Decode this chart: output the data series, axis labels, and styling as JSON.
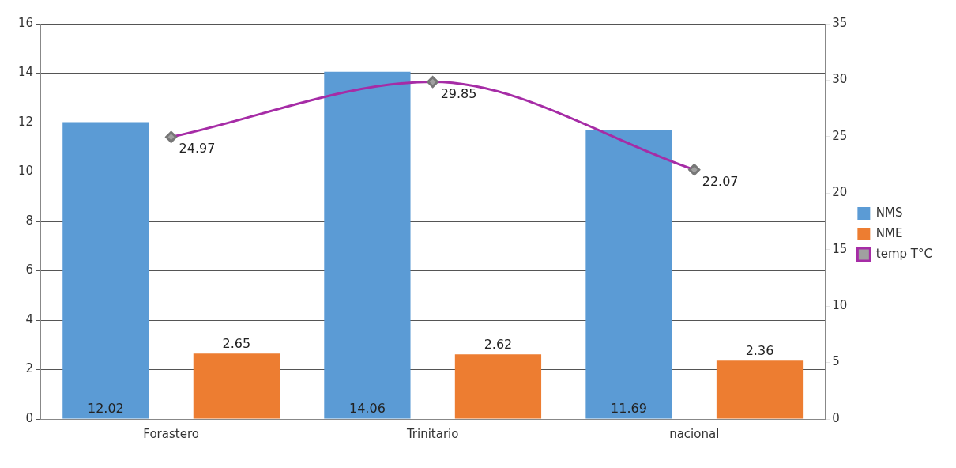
{
  "chart_data": {
    "type": "bar",
    "categories": [
      "Forastero",
      "Trinitario",
      "nacional"
    ],
    "series": [
      {
        "name": "NMS",
        "color": "#5b9bd5",
        "values": [
          12.02,
          14.06,
          11.69
        ]
      },
      {
        "name": "NME",
        "color": "#ed7d31",
        "values": [
          2.65,
          2.62,
          2.36
        ]
      },
      {
        "name": "temp T°C",
        "type": "line",
        "axis": "y2",
        "color": "#a62ca6",
        "values": [
          24.97,
          29.85,
          22.07
        ]
      }
    ],
    "ylim": [
      0,
      16
    ],
    "yticks": [
      0,
      2,
      4,
      6,
      8,
      10,
      12,
      14,
      16
    ],
    "y2lim": [
      0,
      35
    ],
    "y2ticks": [
      0,
      5,
      10,
      15,
      20,
      25,
      30,
      35
    ],
    "grid": "y",
    "legend": "right",
    "marker": "diamond",
    "data_labels": true
  }
}
